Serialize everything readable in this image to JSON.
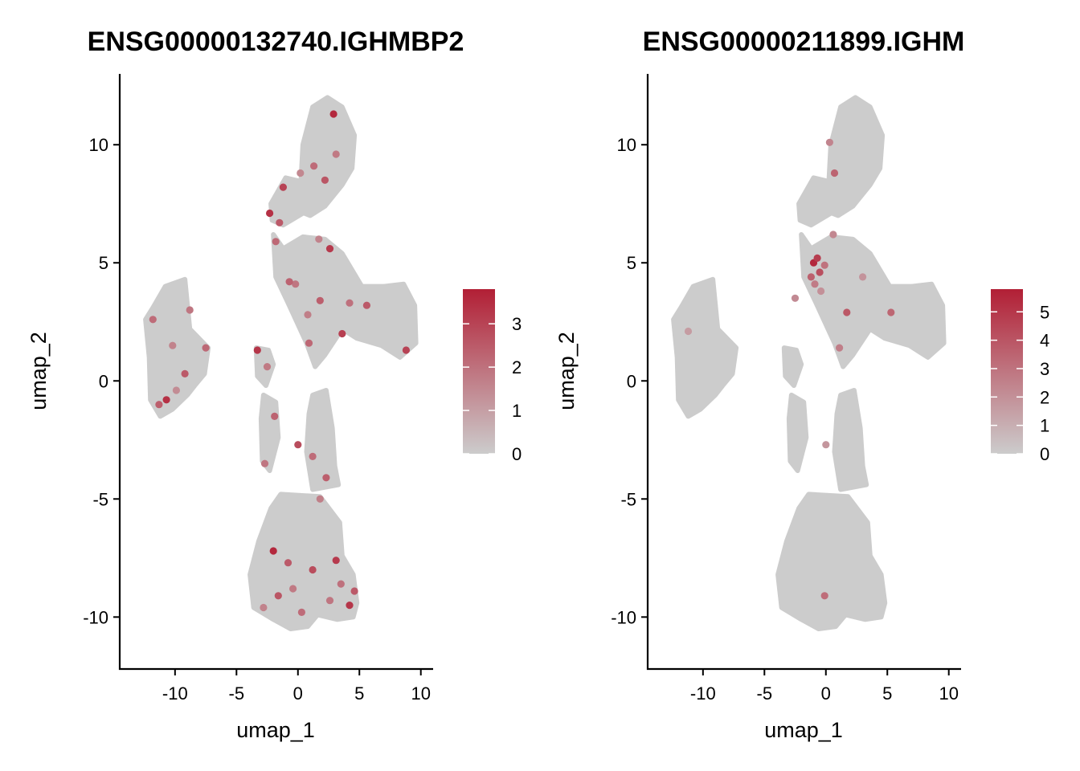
{
  "chart_data": [
    {
      "type": "scatter",
      "title": "ENSG00000132740.IGHMBP2",
      "xlabel": "umap_1",
      "ylabel": "umap_2",
      "xlim": [
        -14.5,
        11
      ],
      "ylim": [
        -12.2,
        13
      ],
      "xticks": [
        -10,
        -5,
        0,
        5,
        10
      ],
      "xtick_labels": [
        "-10",
        "-5",
        "0",
        "5",
        "10"
      ],
      "yticks": [
        -10,
        -5,
        0,
        5,
        10
      ],
      "ytick_labels": [
        "-10",
        "-5",
        "0",
        "5",
        "10"
      ],
      "color_low": "#cccccc",
      "color_high": "#b21f35",
      "legend": {
        "min": 0,
        "max": 3.8,
        "ticks": [
          0,
          1,
          2,
          3
        ],
        "tick_labels": [
          "0",
          "1",
          "2",
          "3"
        ],
        "position": "right"
      },
      "points": [
        {
          "x": -2.3,
          "y": 7.1,
          "v": 3.4
        },
        {
          "x": -1.2,
          "y": 8.2,
          "v": 3.0
        },
        {
          "x": 2.2,
          "y": 8.5,
          "v": 2.6
        },
        {
          "x": -1.5,
          "y": 6.7,
          "v": 2.5
        },
        {
          "x": 1.3,
          "y": 9.1,
          "v": 2.1
        },
        {
          "x": 2.9,
          "y": 11.3,
          "v": 3.6
        },
        {
          "x": -1.8,
          "y": 5.9,
          "v": 2.2
        },
        {
          "x": 2.6,
          "y": 5.6,
          "v": 3.2
        },
        {
          "x": -0.2,
          "y": 4.1,
          "v": 1.9
        },
        {
          "x": 1.8,
          "y": 3.4,
          "v": 2.4
        },
        {
          "x": 4.2,
          "y": 3.3,
          "v": 2.0
        },
        {
          "x": 3.6,
          "y": 2.0,
          "v": 3.1
        },
        {
          "x": -0.7,
          "y": 4.2,
          "v": 2.3
        },
        {
          "x": 0.8,
          "y": 2.8,
          "v": 1.7
        },
        {
          "x": 8.8,
          "y": 1.3,
          "v": 3.0
        },
        {
          "x": 5.6,
          "y": 3.2,
          "v": 2.5
        },
        {
          "x": -3.3,
          "y": 1.3,
          "v": 3.3
        },
        {
          "x": -2.5,
          "y": 0.6,
          "v": 1.8
        },
        {
          "x": 0.9,
          "y": 1.6,
          "v": 2.2
        },
        {
          "x": -10.7,
          "y": -0.8,
          "v": 3.4
        },
        {
          "x": -11.8,
          "y": 2.6,
          "v": 2.1
        },
        {
          "x": -10.2,
          "y": 1.5,
          "v": 1.6
        },
        {
          "x": -9.2,
          "y": 0.3,
          "v": 2.5
        },
        {
          "x": -8.8,
          "y": 3.0,
          "v": 1.9
        },
        {
          "x": -11.3,
          "y": -1.0,
          "v": 2.4
        },
        {
          "x": -7.5,
          "y": 1.4,
          "v": 2.2
        },
        {
          "x": -9.9,
          "y": -0.4,
          "v": 1.4
        },
        {
          "x": -1.9,
          "y": -1.5,
          "v": 2.3
        },
        {
          "x": -2.7,
          "y": -3.5,
          "v": 1.9
        },
        {
          "x": 0.0,
          "y": -2.7,
          "v": 2.8
        },
        {
          "x": 1.2,
          "y": -3.2,
          "v": 2.1
        },
        {
          "x": 1.8,
          "y": -5.0,
          "v": 1.7
        },
        {
          "x": 2.3,
          "y": -4.1,
          "v": 2.4
        },
        {
          "x": -2.0,
          "y": -7.2,
          "v": 3.6
        },
        {
          "x": -0.8,
          "y": -7.7,
          "v": 2.5
        },
        {
          "x": 1.2,
          "y": -8.0,
          "v": 2.8
        },
        {
          "x": 3.1,
          "y": -7.6,
          "v": 3.2
        },
        {
          "x": 4.2,
          "y": -9.5,
          "v": 3.3
        },
        {
          "x": 3.5,
          "y": -8.6,
          "v": 2.0
        },
        {
          "x": -1.6,
          "y": -9.1,
          "v": 2.6
        },
        {
          "x": 0.3,
          "y": -9.8,
          "v": 2.1
        },
        {
          "x": 2.6,
          "y": -9.3,
          "v": 1.9
        },
        {
          "x": -2.8,
          "y": -9.6,
          "v": 1.6
        },
        {
          "x": 4.6,
          "y": -8.9,
          "v": 2.5
        },
        {
          "x": -0.4,
          "y": -8.8,
          "v": 1.8
        },
        {
          "x": 0.2,
          "y": 8.8,
          "v": 1.5
        },
        {
          "x": 3.1,
          "y": 9.6,
          "v": 1.8
        },
        {
          "x": 1.7,
          "y": 6.0,
          "v": 1.6
        }
      ]
    },
    {
      "type": "scatter",
      "title": "ENSG00000211899.IGHM",
      "xlabel": "umap_1",
      "ylabel": "umap_2",
      "xlim": [
        -14.5,
        11
      ],
      "ylim": [
        -12.2,
        13
      ],
      "xticks": [
        -10,
        -5,
        0,
        5,
        10
      ],
      "xtick_labels": [
        "-10",
        "-5",
        "0",
        "5",
        "10"
      ],
      "yticks": [
        -10,
        -5,
        0,
        5,
        10
      ],
      "ytick_labels": [
        "-10",
        "-5",
        "0",
        "5",
        "10"
      ],
      "color_low": "#cccccc",
      "color_high": "#b21f35",
      "legend": {
        "min": 0,
        "max": 5.8,
        "ticks": [
          0,
          1,
          2,
          3,
          4,
          5
        ],
        "tick_labels": [
          "0",
          "1",
          "2",
          "3",
          "4",
          "5"
        ],
        "position": "right"
      },
      "points": [
        {
          "x": -1.0,
          "y": 5.0,
          "v": 5.5
        },
        {
          "x": -0.7,
          "y": 5.2,
          "v": 4.8
        },
        {
          "x": -0.5,
          "y": 4.6,
          "v": 4.2
        },
        {
          "x": -1.2,
          "y": 4.4,
          "v": 3.6
        },
        {
          "x": -0.1,
          "y": 4.9,
          "v": 3.0
        },
        {
          "x": -0.9,
          "y": 4.1,
          "v": 2.7
        },
        {
          "x": 0.7,
          "y": 8.8,
          "v": 3.5
        },
        {
          "x": 0.3,
          "y": 10.1,
          "v": 2.4
        },
        {
          "x": 1.7,
          "y": 2.9,
          "v": 3.9
        },
        {
          "x": 1.1,
          "y": 1.4,
          "v": 2.6
        },
        {
          "x": 5.3,
          "y": 2.9,
          "v": 3.4
        },
        {
          "x": -2.5,
          "y": 3.5,
          "v": 2.2
        },
        {
          "x": -0.4,
          "y": 3.8,
          "v": 2.0
        },
        {
          "x": 3.0,
          "y": 4.4,
          "v": 1.9
        },
        {
          "x": -0.1,
          "y": -9.1,
          "v": 3.2
        },
        {
          "x": 0.0,
          "y": -2.7,
          "v": 1.8
        },
        {
          "x": -11.2,
          "y": 2.1,
          "v": 1.6
        },
        {
          "x": 0.6,
          "y": 6.2,
          "v": 2.3
        }
      ]
    }
  ]
}
